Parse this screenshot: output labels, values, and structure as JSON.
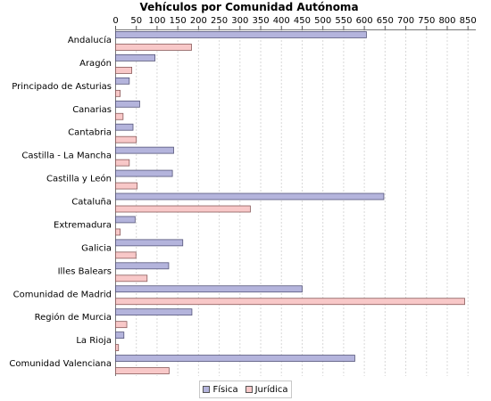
{
  "chart_data": {
    "type": "bar",
    "orientation": "horizontal",
    "title": "Vehículos por Comunidad Autónoma",
    "xlabel": "",
    "ylabel": "",
    "xlim": [
      0,
      870
    ],
    "x_ticks": [
      0,
      50,
      100,
      150,
      200,
      250,
      300,
      350,
      400,
      450,
      500,
      550,
      600,
      650,
      700,
      750,
      800,
      850
    ],
    "grid": true,
    "legend_position": "bottom",
    "categories": [
      "Andalucía",
      "Aragón",
      "Principado de Asturias",
      "Canarias",
      "Cantabria",
      "Castilla - La Mancha",
      "Castilla y León",
      "Cataluña",
      "Extremadura",
      "Galicia",
      "Illes Balears",
      "Comunidad de Madrid",
      "Región de Murcia",
      "La Rioja",
      "Comunidad Valenciana"
    ],
    "series": [
      {
        "name": "Física",
        "color": "#b4b4dc",
        "values": [
          605,
          95,
          33,
          58,
          42,
          140,
          137,
          647,
          47,
          162,
          128,
          450,
          184,
          20,
          577
        ]
      },
      {
        "name": "Jurídica",
        "color": "#f8c8c8",
        "values": [
          183,
          39,
          11,
          18,
          50,
          33,
          52,
          325,
          11,
          49,
          76,
          842,
          27,
          7,
          129
        ]
      }
    ]
  }
}
